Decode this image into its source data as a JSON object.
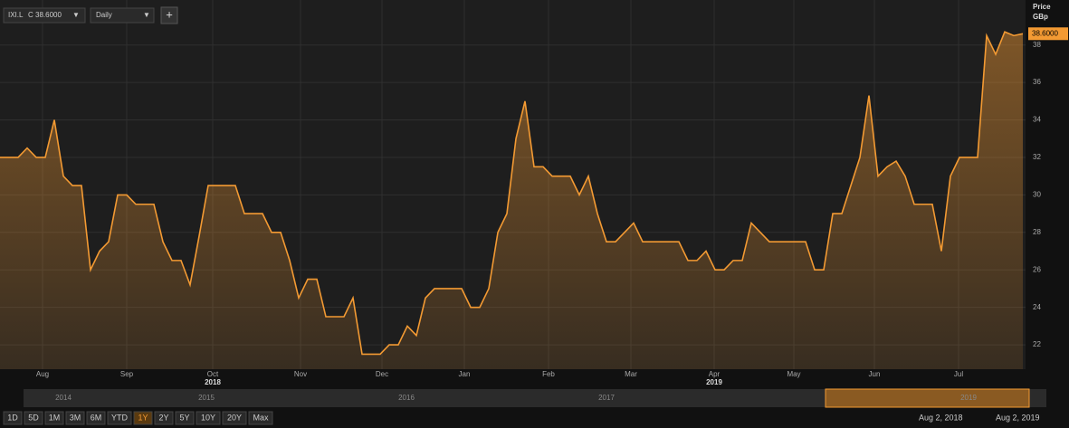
{
  "ui": {
    "symbol": "IXI.L",
    "quote": "C 38.6000",
    "interval": "Daily",
    "add_button": "+",
    "ranges": [
      "1D",
      "5D",
      "1M",
      "3M",
      "6M",
      "YTD",
      "1Y",
      "2Y",
      "5Y",
      "10Y",
      "20Y",
      "Max"
    ],
    "active_range": "1Y",
    "navigator_years": [
      "2014",
      "2015",
      "2016",
      "2017",
      "2019"
    ],
    "date_from": "Aug 2, 2018",
    "date_to": "Aug 2, 2019"
  },
  "chart_data": {
    "type": "area",
    "y_axis_title": "Price",
    "y_axis_unit": "GBp",
    "last_price_label": "38.6000",
    "series": [
      {
        "name": "IXI.L",
        "color": "#f39a33",
        "values": [
          32,
          32,
          32,
          32.5,
          32,
          32,
          34,
          31,
          30.5,
          30.5,
          26,
          27,
          27.5,
          30,
          30,
          29.5,
          29.5,
          29.5,
          27.5,
          26.5,
          26.5,
          25.2,
          27.8,
          30.5,
          30.5,
          30.5,
          30.5,
          29,
          29,
          29,
          28,
          28,
          26.5,
          24.5,
          25.5,
          25.5,
          23.5,
          23.5,
          23.5,
          24.5,
          21.5,
          21.5,
          21.5,
          22,
          22,
          23,
          22.5,
          24.5,
          25,
          25,
          25,
          25,
          24,
          24,
          25,
          28,
          29,
          33,
          35,
          31.5,
          31.5,
          31,
          31,
          31,
          30,
          31,
          29,
          27.5,
          27.5,
          28,
          28.5,
          27.5,
          27.5,
          27.5,
          27.5,
          27.5,
          26.5,
          26.5,
          27,
          26,
          26,
          26.5,
          26.5,
          28.5,
          28,
          27.5,
          27.5,
          27.5,
          27.5,
          27.5,
          26,
          26,
          29,
          29,
          30.5,
          32,
          35.3,
          31,
          31.5,
          31.8,
          31,
          29.5,
          29.5,
          29.5,
          27,
          31,
          32,
          32,
          32,
          38.5,
          37.5,
          38.7,
          38.5,
          38.6
        ]
      }
    ],
    "xlim": [
      0,
      113.3
    ],
    "xticks": [
      {
        "value": 4.7,
        "label": "Aug"
      },
      {
        "value": 14,
        "label": "Sep"
      },
      {
        "value": 23.5,
        "label": "Oct"
      },
      {
        "value": 33.2,
        "label": "Nov"
      },
      {
        "value": 42.2,
        "label": "Dec"
      },
      {
        "value": 51.3,
        "label": "Jan"
      },
      {
        "value": 60.6,
        "label": "Feb"
      },
      {
        "value": 69.7,
        "label": "Mar"
      },
      {
        "value": 78.9,
        "label": "Apr"
      },
      {
        "value": 87.7,
        "label": "May"
      },
      {
        "value": 96.6,
        "label": "Jun"
      },
      {
        "value": 105.9,
        "label": "Jul"
      }
    ],
    "year_labels": [
      {
        "value": 23.5,
        "label": "2018"
      },
      {
        "value": 78.9,
        "label": "2019"
      }
    ],
    "ylim": [
      20.7,
      40.4
    ],
    "yticks": [
      22,
      24,
      26,
      28,
      30,
      32,
      34,
      36,
      38
    ],
    "grid": true
  }
}
